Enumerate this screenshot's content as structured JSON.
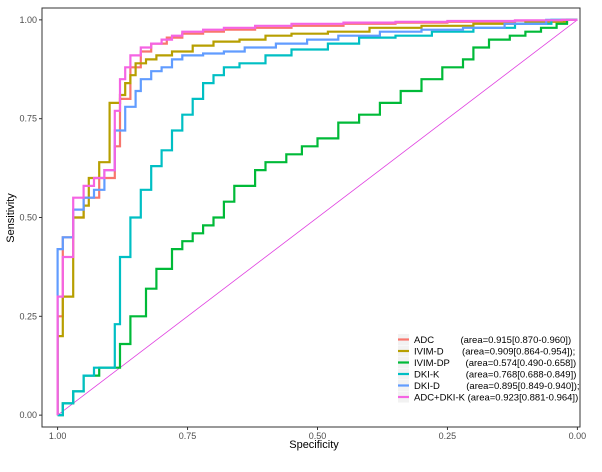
{
  "chart_data": {
    "type": "line",
    "title": "",
    "xlabel": "Specificity",
    "ylabel": "Sensitivity",
    "x_reversed": true,
    "xlim": [
      1.03,
      -0.005
    ],
    "ylim": [
      -0.03,
      1.03
    ],
    "xticks": [
      1.0,
      0.75,
      0.5,
      0.25,
      0.0
    ],
    "xtick_labels": [
      "1.00",
      "0.75",
      "0.50",
      "0.25",
      "0.00"
    ],
    "yticks": [
      0.0,
      0.25,
      0.5,
      0.75,
      1.0
    ],
    "ytick_labels": [
      "0.00",
      "0.25",
      "0.50",
      "0.75",
      "1.00"
    ],
    "grid": false,
    "legend_position": "bottom-right",
    "reference_line": {
      "color": "#E040E0",
      "x": [
        1.0,
        0.0
      ],
      "y": [
        0.0,
        1.0
      ]
    },
    "series": [
      {
        "name": "ADC",
        "legend_label": "ADC          (area=0.915[0.870-0.960])",
        "color": "#F8766D",
        "x": [
          1.0,
          1.0,
          0.99,
          0.99,
          0.97,
          0.97,
          0.95,
          0.95,
          0.92,
          0.92,
          0.89,
          0.89,
          0.88,
          0.88,
          0.86,
          0.86,
          0.84,
          0.84,
          0.82,
          0.82,
          0.79,
          0.79,
          0.76,
          0.76,
          0.72,
          0.72,
          0.68,
          0.68,
          0.62,
          0.62,
          0.55,
          0.55,
          0.45,
          0.45,
          0.35,
          0.35,
          0.25,
          0.25,
          0.12,
          0.12,
          0.03,
          0.03,
          0.0
        ],
        "y": [
          0.0,
          0.25,
          0.25,
          0.45,
          0.45,
          0.5,
          0.5,
          0.55,
          0.55,
          0.6,
          0.6,
          0.68,
          0.68,
          0.8,
          0.8,
          0.88,
          0.88,
          0.92,
          0.92,
          0.94,
          0.94,
          0.955,
          0.955,
          0.965,
          0.965,
          0.97,
          0.97,
          0.975,
          0.975,
          0.98,
          0.98,
          0.985,
          0.985,
          0.99,
          0.99,
          0.993,
          0.993,
          0.995,
          0.995,
          0.998,
          0.998,
          1.0,
          1.0
        ]
      },
      {
        "name": "IVIM-D",
        "legend_label": "IVIM-D       (area=0.909[0.864-0.954]);",
        "color": "#B79F00",
        "x": [
          1.0,
          1.0,
          0.99,
          0.99,
          0.97,
          0.97,
          0.95,
          0.95,
          0.94,
          0.94,
          0.92,
          0.92,
          0.9,
          0.9,
          0.88,
          0.88,
          0.87,
          0.87,
          0.86,
          0.86,
          0.85,
          0.85,
          0.83,
          0.83,
          0.81,
          0.81,
          0.78,
          0.78,
          0.74,
          0.74,
          0.7,
          0.7,
          0.65,
          0.65,
          0.6,
          0.6,
          0.55,
          0.55,
          0.48,
          0.48,
          0.4,
          0.4,
          0.3,
          0.3,
          0.2,
          0.2,
          0.1,
          0.1,
          0.02,
          0.02,
          0.0
        ],
        "y": [
          0.0,
          0.2,
          0.2,
          0.3,
          0.3,
          0.5,
          0.5,
          0.53,
          0.53,
          0.6,
          0.6,
          0.64,
          0.64,
          0.79,
          0.79,
          0.81,
          0.81,
          0.84,
          0.84,
          0.86,
          0.86,
          0.89,
          0.89,
          0.9,
          0.9,
          0.91,
          0.91,
          0.92,
          0.92,
          0.935,
          0.935,
          0.945,
          0.945,
          0.95,
          0.95,
          0.96,
          0.96,
          0.965,
          0.965,
          0.97,
          0.97,
          0.98,
          0.98,
          0.985,
          0.985,
          0.99,
          0.99,
          0.995,
          0.995,
          1.0,
          1.0
        ]
      },
      {
        "name": "IVIM-DP",
        "legend_label": "IVIM-DP      (area=0.574[0.490-0.658])",
        "color": "#00BA38",
        "x": [
          1.0,
          0.99,
          0.99,
          0.97,
          0.97,
          0.95,
          0.95,
          0.92,
          0.92,
          0.88,
          0.88,
          0.86,
          0.86,
          0.83,
          0.83,
          0.81,
          0.81,
          0.78,
          0.78,
          0.76,
          0.76,
          0.74,
          0.74,
          0.72,
          0.72,
          0.7,
          0.7,
          0.68,
          0.68,
          0.66,
          0.66,
          0.62,
          0.62,
          0.6,
          0.6,
          0.56,
          0.56,
          0.53,
          0.53,
          0.5,
          0.5,
          0.46,
          0.46,
          0.42,
          0.42,
          0.38,
          0.38,
          0.34,
          0.34,
          0.3,
          0.3,
          0.26,
          0.26,
          0.22,
          0.22,
          0.2,
          0.2,
          0.17,
          0.17,
          0.13,
          0.13,
          0.1,
          0.1,
          0.07,
          0.07,
          0.04,
          0.04,
          0.02,
          0.02,
          0.0
        ],
        "y": [
          0.0,
          0.0,
          0.03,
          0.03,
          0.06,
          0.06,
          0.1,
          0.1,
          0.12,
          0.12,
          0.18,
          0.18,
          0.25,
          0.25,
          0.32,
          0.32,
          0.37,
          0.37,
          0.42,
          0.42,
          0.44,
          0.44,
          0.46,
          0.46,
          0.48,
          0.48,
          0.5,
          0.5,
          0.54,
          0.54,
          0.58,
          0.58,
          0.62,
          0.62,
          0.64,
          0.64,
          0.66,
          0.66,
          0.68,
          0.68,
          0.7,
          0.7,
          0.74,
          0.74,
          0.76,
          0.76,
          0.79,
          0.79,
          0.82,
          0.82,
          0.85,
          0.85,
          0.88,
          0.88,
          0.9,
          0.9,
          0.93,
          0.93,
          0.95,
          0.95,
          0.96,
          0.96,
          0.97,
          0.97,
          0.98,
          0.98,
          0.99,
          0.99,
          1.0,
          1.0
        ]
      },
      {
        "name": "DKI-K",
        "legend_label": "DKI-K          (area=0.768[0.688-0.849])",
        "color": "#00BFC4",
        "x": [
          1.0,
          0.99,
          0.99,
          0.97,
          0.97,
          0.95,
          0.95,
          0.93,
          0.93,
          0.89,
          0.89,
          0.88,
          0.88,
          0.86,
          0.86,
          0.84,
          0.84,
          0.82,
          0.82,
          0.8,
          0.8,
          0.78,
          0.78,
          0.76,
          0.76,
          0.74,
          0.74,
          0.72,
          0.72,
          0.7,
          0.7,
          0.68,
          0.68,
          0.65,
          0.65,
          0.6,
          0.6,
          0.55,
          0.55,
          0.48,
          0.48,
          0.42,
          0.42,
          0.35,
          0.35,
          0.28,
          0.28,
          0.2,
          0.2,
          0.12,
          0.12,
          0.05,
          0.05,
          0.0
        ],
        "y": [
          0.0,
          0.0,
          0.03,
          0.03,
          0.06,
          0.06,
          0.1,
          0.1,
          0.12,
          0.12,
          0.23,
          0.23,
          0.4,
          0.4,
          0.5,
          0.5,
          0.57,
          0.57,
          0.63,
          0.63,
          0.67,
          0.67,
          0.72,
          0.72,
          0.76,
          0.76,
          0.8,
          0.8,
          0.84,
          0.84,
          0.86,
          0.86,
          0.88,
          0.88,
          0.89,
          0.89,
          0.91,
          0.91,
          0.925,
          0.925,
          0.94,
          0.94,
          0.955,
          0.955,
          0.96,
          0.96,
          0.97,
          0.97,
          0.98,
          0.98,
          0.99,
          0.99,
          1.0,
          1.0
        ]
      },
      {
        "name": "DKI-D",
        "legend_label": "DKI-D          (area=0.895[0.849-0.940]);",
        "color": "#619CFF",
        "x": [
          1.0,
          1.0,
          0.99,
          0.99,
          0.97,
          0.97,
          0.95,
          0.95,
          0.93,
          0.93,
          0.91,
          0.91,
          0.89,
          0.89,
          0.87,
          0.87,
          0.85,
          0.85,
          0.84,
          0.84,
          0.82,
          0.82,
          0.8,
          0.8,
          0.78,
          0.78,
          0.76,
          0.76,
          0.72,
          0.72,
          0.68,
          0.68,
          0.64,
          0.64,
          0.58,
          0.58,
          0.52,
          0.52,
          0.46,
          0.46,
          0.38,
          0.38,
          0.3,
          0.3,
          0.22,
          0.22,
          0.14,
          0.14,
          0.06,
          0.06,
          0.0
        ],
        "y": [
          0.0,
          0.42,
          0.42,
          0.45,
          0.45,
          0.52,
          0.52,
          0.55,
          0.55,
          0.57,
          0.57,
          0.62,
          0.62,
          0.72,
          0.72,
          0.78,
          0.78,
          0.82,
          0.82,
          0.85,
          0.85,
          0.87,
          0.87,
          0.88,
          0.88,
          0.9,
          0.9,
          0.91,
          0.91,
          0.915,
          0.915,
          0.92,
          0.92,
          0.93,
          0.93,
          0.94,
          0.94,
          0.95,
          0.95,
          0.96,
          0.96,
          0.97,
          0.97,
          0.975,
          0.975,
          0.98,
          0.98,
          0.99,
          0.99,
          1.0,
          1.0
        ]
      },
      {
        "name": "ADC+DKI-K",
        "legend_label": "ADC+DKI-K (area=0.923[0.881-0.964])",
        "color": "#F564E3",
        "x": [
          1.0,
          1.0,
          0.99,
          0.99,
          0.97,
          0.97,
          0.95,
          0.95,
          0.93,
          0.93,
          0.91,
          0.91,
          0.89,
          0.89,
          0.88,
          0.88,
          0.87,
          0.87,
          0.86,
          0.86,
          0.84,
          0.84,
          0.82,
          0.82,
          0.8,
          0.8,
          0.78,
          0.78,
          0.76,
          0.76,
          0.72,
          0.72,
          0.68,
          0.68,
          0.62,
          0.62,
          0.55,
          0.55,
          0.45,
          0.45,
          0.35,
          0.35,
          0.25,
          0.25,
          0.12,
          0.12,
          0.03,
          0.03,
          0.0
        ],
        "y": [
          0.0,
          0.3,
          0.3,
          0.4,
          0.4,
          0.55,
          0.55,
          0.58,
          0.58,
          0.6,
          0.6,
          0.62,
          0.62,
          0.77,
          0.77,
          0.85,
          0.85,
          0.88,
          0.88,
          0.91,
          0.91,
          0.93,
          0.93,
          0.94,
          0.94,
          0.95,
          0.95,
          0.96,
          0.96,
          0.97,
          0.97,
          0.975,
          0.975,
          0.98,
          0.98,
          0.985,
          0.985,
          0.99,
          0.99,
          0.993,
          0.993,
          0.995,
          0.995,
          0.997,
          0.997,
          0.999,
          0.999,
          1.0,
          1.0
        ]
      }
    ]
  }
}
